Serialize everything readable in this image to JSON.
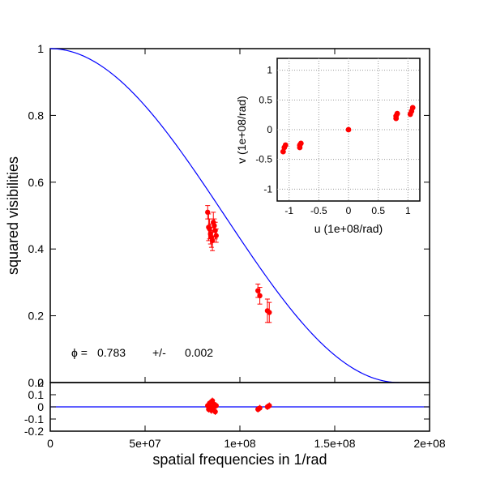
{
  "chart_data": [
    {
      "type": "scatter",
      "panel": "main",
      "xlabel": "spatial frequencies in 1/rad",
      "ylabel": "squared visibilities",
      "xlim": [
        0,
        200000000
      ],
      "ylim": [
        0,
        1
      ],
      "x_ticks": [
        "0",
        "5e+07",
        "1e+08",
        "1.5e+08",
        "2e+08"
      ],
      "y_ticks": [
        "0",
        "0.2",
        "0.4",
        "0.6",
        "0.8",
        "1"
      ],
      "grid": false,
      "annotation": {
        "symbol": "ϕ =",
        "value": "0.783",
        "pm": "+/-",
        "error": "0.002"
      },
      "model_curve": {
        "color": "#0000ff",
        "x_zero": 184000000
      },
      "points": [
        {
          "x": 83000000,
          "y": 0.51,
          "err": 0.02
        },
        {
          "x": 83500000,
          "y": 0.465,
          "err": 0.04
        },
        {
          "x": 84000000,
          "y": 0.46,
          "err": 0.03
        },
        {
          "x": 84500000,
          "y": 0.445,
          "err": 0.03
        },
        {
          "x": 85000000,
          "y": 0.435,
          "err": 0.03
        },
        {
          "x": 85500000,
          "y": 0.425,
          "err": 0.03
        },
        {
          "x": 86000000,
          "y": 0.48,
          "err": 0.03
        },
        {
          "x": 86500000,
          "y": 0.47,
          "err": 0.02
        },
        {
          "x": 87000000,
          "y": 0.455,
          "err": 0.025
        },
        {
          "x": 87500000,
          "y": 0.44,
          "err": 0.02
        },
        {
          "x": 109500000,
          "y": 0.275,
          "err": 0.02
        },
        {
          "x": 110500000,
          "y": 0.26,
          "err": 0.025
        },
        {
          "x": 114500000,
          "y": 0.215,
          "err": 0.035
        },
        {
          "x": 115500000,
          "y": 0.21,
          "err": 0.03
        }
      ],
      "point_color": "#ff0000"
    },
    {
      "type": "scatter",
      "panel": "residuals",
      "xlim": [
        0,
        200000000
      ],
      "ylim": [
        -0.2,
        0.2
      ],
      "y_ticks": [
        "-0.2",
        "-0.1",
        "0",
        "0.1",
        "0.2"
      ],
      "points": [
        {
          "x": 83000000,
          "y": 0.01
        },
        {
          "x": 83500000,
          "y": -0.02
        },
        {
          "x": 84000000,
          "y": 0.03
        },
        {
          "x": 84500000,
          "y": 0.0
        },
        {
          "x": 85000000,
          "y": -0.03
        },
        {
          "x": 85500000,
          "y": 0.05
        },
        {
          "x": 86000000,
          "y": -0.01
        },
        {
          "x": 86500000,
          "y": 0.02
        },
        {
          "x": 87000000,
          "y": -0.04
        },
        {
          "x": 87500000,
          "y": 0.01
        },
        {
          "x": 109500000,
          "y": -0.02
        },
        {
          "x": 110500000,
          "y": -0.01
        },
        {
          "x": 114500000,
          "y": 0.0
        },
        {
          "x": 115500000,
          "y": 0.01
        }
      ]
    },
    {
      "type": "scatter",
      "panel": "uv-inset",
      "xlabel": "u (1e+08/rad)",
      "ylabel": "v (1e+08/rad)",
      "xlim": [
        -1.2,
        1.2
      ],
      "ylim": [
        -1.2,
        1.2
      ],
      "x_ticks": [
        "-1",
        "-0.5",
        "0",
        "0.5",
        "1"
      ],
      "y_ticks": [
        "-1",
        "-0.5",
        "0",
        "0.5",
        "1"
      ],
      "grid": true,
      "points": [
        {
          "u": -1.1,
          "v": -0.37
        },
        {
          "u": -1.08,
          "v": -0.3
        },
        {
          "u": -1.06,
          "v": -0.26
        },
        {
          "u": -0.82,
          "v": -0.3
        },
        {
          "u": -0.82,
          "v": -0.26
        },
        {
          "u": -0.8,
          "v": -0.23
        },
        {
          "u": 0.0,
          "v": 0.0
        },
        {
          "u": 0.8,
          "v": 0.19
        },
        {
          "u": 0.8,
          "v": 0.23
        },
        {
          "u": 0.82,
          "v": 0.27
        },
        {
          "u": 1.04,
          "v": 0.26
        },
        {
          "u": 1.06,
          "v": 0.31
        },
        {
          "u": 1.08,
          "v": 0.37
        }
      ]
    }
  ]
}
